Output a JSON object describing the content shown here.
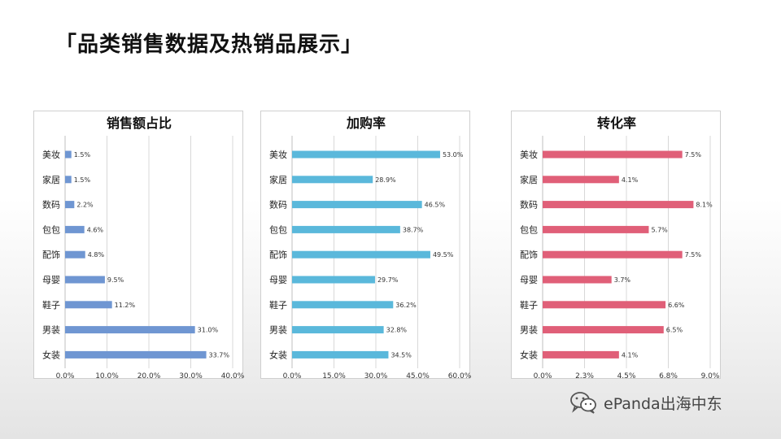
{
  "page": {
    "title": "「品类销售数据及热销品展示」",
    "watermark": "ePanda出海中东"
  },
  "colors": {
    "share": "#6f96d2",
    "cart": "#5ab8db",
    "conversion": "#e05f78"
  },
  "icons": {
    "watermark": "wechat-icon"
  },
  "chart_data": [
    {
      "type": "bar",
      "orientation": "horizontal",
      "title": "销售额占比",
      "categories": [
        "美妆",
        "家居",
        "数码",
        "包包",
        "配饰",
        "母婴",
        "鞋子",
        "男装",
        "女装"
      ],
      "values": [
        1.5,
        1.5,
        2.2,
        4.6,
        4.8,
        9.5,
        11.2,
        31.0,
        33.7
      ],
      "value_labels": [
        "1.5%",
        "1.5%",
        "2.2%",
        "4.6%",
        "4.8%",
        "9.5%",
        "11.2%",
        "31.0%",
        "33.7%"
      ],
      "ticks": [
        "0.0%",
        "10.0%",
        "20.0%",
        "30.0%",
        "40.0%"
      ],
      "xlim": [
        0,
        40
      ],
      "grid": true,
      "color": "#6f96d2"
    },
    {
      "type": "bar",
      "orientation": "horizontal",
      "title": "加购率",
      "categories": [
        "美妆",
        "家居",
        "数码",
        "包包",
        "配饰",
        "母婴",
        "鞋子",
        "男装",
        "女装"
      ],
      "values": [
        53.0,
        28.9,
        46.5,
        38.7,
        49.5,
        29.7,
        36.2,
        32.8,
        34.5
      ],
      "value_labels": [
        "53.0%",
        "28.9%",
        "46.5%",
        "38.7%",
        "49.5%",
        "29.7%",
        "36.2%",
        "32.8%",
        "34.5%"
      ],
      "ticks": [
        "0.0%",
        "15.0%",
        "30.0%",
        "45.0%",
        "60.0%"
      ],
      "xlim": [
        0,
        60
      ],
      "grid": true,
      "color": "#5ab8db"
    },
    {
      "type": "bar",
      "orientation": "horizontal",
      "title": "转化率",
      "categories": [
        "美妆",
        "家居",
        "数码",
        "包包",
        "配饰",
        "母婴",
        "鞋子",
        "男装",
        "女装"
      ],
      "values": [
        7.5,
        4.1,
        8.1,
        5.7,
        7.5,
        3.7,
        6.6,
        6.5,
        4.1
      ],
      "value_labels": [
        "7.5%",
        "4.1%",
        "8.1%",
        "5.7%",
        "7.5%",
        "3.7%",
        "6.6%",
        "6.5%",
        "4.1%"
      ],
      "ticks": [
        "0.0%",
        "2.3%",
        "4.5%",
        "6.8%",
        "9.0%"
      ],
      "xlim": [
        0,
        9
      ],
      "grid": true,
      "color": "#e05f78"
    }
  ]
}
